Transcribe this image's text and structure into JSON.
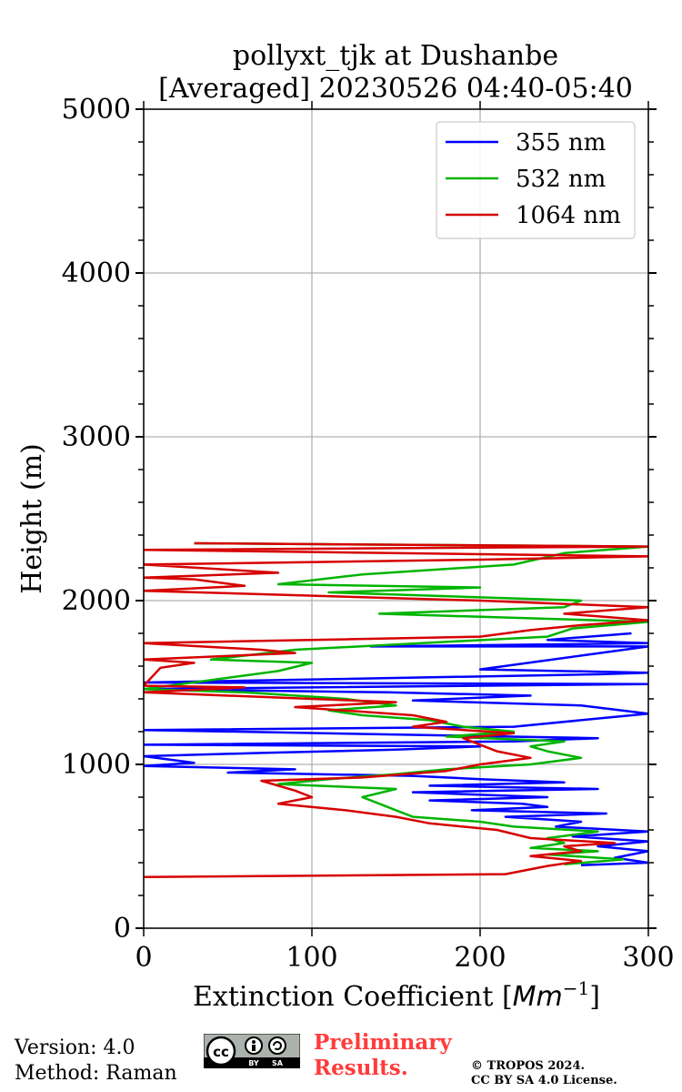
{
  "title_line1": "pollyxt_tjk at Dushanbe",
  "title_line2": "[Averaged] 20230526 04:40-05:40",
  "footer": {
    "version": "Version: 4.0",
    "method": "Method: Raman",
    "preliminary_line1": "Preliminary",
    "preliminary_line2": "Results.",
    "copyright_line1": "© TROPOS 2024.",
    "copyright_line2": "CC BY SA 4.0 License.",
    "license_badge_left": "cc",
    "license_badge_by": "BY",
    "license_badge_sa": "SA"
  },
  "colors": {
    "blue": "#0000ff",
    "green": "#00b400",
    "red": "#d60000",
    "grid": "#b0b0b0",
    "prelim": "#ff3b3b"
  },
  "chart_data": {
    "type": "line",
    "xlabel": "Extinction Coefficient",
    "xlabel_unit_base": "Mm",
    "xlabel_unit_exp": "−1",
    "ylabel": "Height (m)",
    "xlim": [
      0,
      300
    ],
    "ylim": [
      0,
      5000
    ],
    "x_ticks": [
      "0",
      "100",
      "200",
      "300"
    ],
    "y_ticks": [
      "0",
      "1000",
      "2000",
      "3000",
      "4000",
      "5000"
    ],
    "grid": true,
    "legend_position": "top-right",
    "series": [
      {
        "name": "355 nm",
        "color": "#0000ff",
        "points": [
          [
            260,
            385
          ],
          [
            300,
            400
          ],
          [
            280,
            430
          ],
          [
            300,
            470
          ],
          [
            270,
            500
          ],
          [
            300,
            530
          ],
          [
            255,
            560
          ],
          [
            300,
            590
          ],
          [
            245,
            620
          ],
          [
            260,
            650
          ],
          [
            215,
            680
          ],
          [
            275,
            700
          ],
          [
            195,
            720
          ],
          [
            240,
            740
          ],
          [
            225,
            760
          ],
          [
            170,
            780
          ],
          [
            240,
            800
          ],
          [
            160,
            830
          ],
          [
            270,
            850
          ],
          [
            170,
            870
          ],
          [
            250,
            890
          ],
          [
            200,
            910
          ],
          [
            160,
            930
          ],
          [
            50,
            950
          ],
          [
            90,
            970
          ],
          [
            0,
            990
          ],
          [
            30,
            1010
          ],
          [
            0,
            1050
          ],
          [
            70,
            1070
          ],
          [
            150,
            1090
          ],
          [
            200,
            1110
          ],
          [
            0,
            1120
          ],
          [
            220,
            1140
          ],
          [
            270,
            1160
          ],
          [
            0,
            1210
          ],
          [
            220,
            1230
          ],
          [
            300,
            1310
          ],
          [
            260,
            1360
          ],
          [
            160,
            1390
          ],
          [
            230,
            1420
          ],
          [
            145,
            1440
          ],
          [
            0,
            1460
          ],
          [
            300,
            1490
          ],
          [
            0,
            1500
          ],
          [
            270,
            1550
          ],
          [
            300,
            1560
          ],
          [
            200,
            1580
          ],
          [
            300,
            1720
          ],
          [
            135,
            1720
          ],
          [
            300,
            1740
          ],
          [
            240,
            1760
          ],
          [
            290,
            1800
          ]
        ]
      },
      {
        "name": "532 nm",
        "color": "#00b400",
        "points": [
          [
            250,
            390
          ],
          [
            285,
            420
          ],
          [
            240,
            450
          ],
          [
            270,
            470
          ],
          [
            230,
            490
          ],
          [
            250,
            520
          ],
          [
            240,
            550
          ],
          [
            270,
            590
          ],
          [
            220,
            620
          ],
          [
            200,
            650
          ],
          [
            160,
            680
          ],
          [
            150,
            720
          ],
          [
            140,
            760
          ],
          [
            130,
            800
          ],
          [
            150,
            850
          ],
          [
            80,
            880
          ],
          [
            110,
            910
          ],
          [
            150,
            940
          ],
          [
            180,
            970
          ],
          [
            230,
            1000
          ],
          [
            260,
            1040
          ],
          [
            240,
            1080
          ],
          [
            230,
            1110
          ],
          [
            250,
            1140
          ],
          [
            180,
            1170
          ],
          [
            220,
            1200
          ],
          [
            190,
            1230
          ],
          [
            170,
            1270
          ],
          [
            130,
            1300
          ],
          [
            110,
            1330
          ],
          [
            150,
            1360
          ],
          [
            120,
            1400
          ],
          [
            60,
            1440
          ],
          [
            0,
            1460
          ],
          [
            80,
            1570
          ],
          [
            100,
            1620
          ],
          [
            40,
            1640
          ],
          [
            90,
            1700
          ],
          [
            240,
            1780
          ],
          [
            255,
            1830
          ],
          [
            300,
            1870
          ],
          [
            140,
            1920
          ],
          [
            250,
            1960
          ],
          [
            260,
            2000
          ],
          [
            110,
            2050
          ],
          [
            200,
            2080
          ],
          [
            80,
            2100
          ],
          [
            130,
            2160
          ],
          [
            220,
            2220
          ],
          [
            250,
            2290
          ],
          [
            300,
            2330
          ],
          [
            30,
            2350
          ]
        ]
      },
      {
        "name": "1064 nm",
        "color": "#d60000",
        "points": [
          [
            0,
            312
          ],
          [
            215,
            330
          ],
          [
            240,
            380
          ],
          [
            260,
            410
          ],
          [
            230,
            440
          ],
          [
            260,
            470
          ],
          [
            250,
            500
          ],
          [
            280,
            520
          ],
          [
            230,
            550
          ],
          [
            210,
            600
          ],
          [
            170,
            640
          ],
          [
            150,
            680
          ],
          [
            120,
            720
          ],
          [
            80,
            760
          ],
          [
            100,
            800
          ],
          [
            90,
            840
          ],
          [
            70,
            900
          ],
          [
            130,
            920
          ],
          [
            180,
            960
          ],
          [
            200,
            1000
          ],
          [
            230,
            1040
          ],
          [
            210,
            1080
          ],
          [
            200,
            1120
          ],
          [
            190,
            1160
          ],
          [
            220,
            1190
          ],
          [
            160,
            1230
          ],
          [
            180,
            1260
          ],
          [
            160,
            1300
          ],
          [
            90,
            1350
          ],
          [
            150,
            1380
          ],
          [
            100,
            1400
          ],
          [
            0,
            1440
          ],
          [
            60,
            1470
          ],
          [
            0,
            1480
          ],
          [
            10,
            1590
          ],
          [
            30,
            1620
          ],
          [
            0,
            1640
          ],
          [
            90,
            1680
          ],
          [
            70,
            1700
          ],
          [
            0,
            1740
          ],
          [
            200,
            1780
          ],
          [
            230,
            1820
          ],
          [
            260,
            1850
          ],
          [
            300,
            1880
          ],
          [
            250,
            1920
          ],
          [
            300,
            1960
          ],
          [
            200,
            2000
          ],
          [
            0,
            2060
          ],
          [
            60,
            2090
          ],
          [
            30,
            2130
          ],
          [
            0,
            2140
          ],
          [
            80,
            2170
          ],
          [
            0,
            2220
          ],
          [
            200,
            2250
          ],
          [
            300,
            2270
          ],
          [
            0,
            2310
          ],
          [
            300,
            2330
          ],
          [
            30,
            2350
          ]
        ]
      }
    ]
  }
}
